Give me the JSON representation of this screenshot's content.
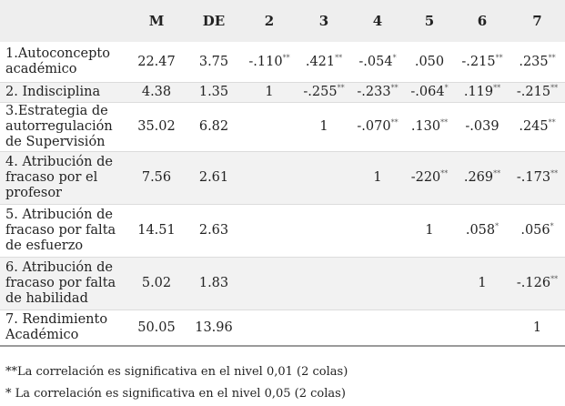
{
  "headers": [
    "",
    "M",
    "DE",
    "2",
    "3",
    "4",
    "5",
    "6",
    "7"
  ],
  "rows": [
    {
      "label": "1.Autoconcepto académico",
      "cells": [
        {
          "v": "22.47",
          "s": ""
        },
        {
          "v": "3.75",
          "s": ""
        },
        {
          "v": "-.110",
          "s": "**"
        },
        {
          "v": ".421",
          "s": "**"
        },
        {
          "v": "-.054",
          "s": "*"
        },
        {
          "v": ".050",
          "s": ""
        },
        {
          "v": "-.215",
          "s": "**"
        },
        {
          "v": ".235",
          "s": "**"
        }
      ]
    },
    {
      "label": "2. Indisciplina",
      "cells": [
        {
          "v": "4.38",
          "s": ""
        },
        {
          "v": "1.35",
          "s": ""
        },
        {
          "v": "1",
          "s": ""
        },
        {
          "v": "-.255",
          "s": "**"
        },
        {
          "v": "-.233",
          "s": "**"
        },
        {
          "v": "-.064",
          "s": "*"
        },
        {
          "v": ".119",
          "s": "**"
        },
        {
          "v": "-.215",
          "s": "**"
        }
      ]
    },
    {
      "label": "3.Estrategia de autorregulación de Supervisión",
      "cells": [
        {
          "v": "35.02",
          "s": ""
        },
        {
          "v": "6.82",
          "s": ""
        },
        {
          "v": "",
          "s": ""
        },
        {
          "v": "1",
          "s": ""
        },
        {
          "v": "-.070",
          "s": "**"
        },
        {
          "v": ".130",
          "s": "**"
        },
        {
          "v": "-.039",
          "s": ""
        },
        {
          "v": ".245",
          "s": "**"
        }
      ]
    },
    {
      "label": "4. Atribución de fracaso por el profesor",
      "cells": [
        {
          "v": "7.56",
          "s": ""
        },
        {
          "v": "2.61",
          "s": ""
        },
        {
          "v": "",
          "s": ""
        },
        {
          "v": "",
          "s": ""
        },
        {
          "v": "1",
          "s": ""
        },
        {
          "v": "-220",
          "s": "**"
        },
        {
          "v": ".269",
          "s": "**"
        },
        {
          "v": "-.173",
          "s": "**"
        }
      ]
    },
    {
      "label": "5. Atribución de fracaso por falta de esfuerzo",
      "cells": [
        {
          "v": "14.51",
          "s": ""
        },
        {
          "v": "2.63",
          "s": ""
        },
        {
          "v": "",
          "s": ""
        },
        {
          "v": "",
          "s": ""
        },
        {
          "v": "",
          "s": ""
        },
        {
          "v": "1",
          "s": ""
        },
        {
          "v": ".058",
          "s": "*"
        },
        {
          "v": ".056",
          "s": "*"
        }
      ]
    },
    {
      "label": "6. Atribución de fracaso por falta de habilidad",
      "cells": [
        {
          "v": "5.02",
          "s": ""
        },
        {
          "v": "1.83",
          "s": ""
        },
        {
          "v": "",
          "s": ""
        },
        {
          "v": "",
          "s": ""
        },
        {
          "v": "",
          "s": ""
        },
        {
          "v": "",
          "s": ""
        },
        {
          "v": "1",
          "s": ""
        },
        {
          "v": "-.126",
          "s": "**"
        }
      ]
    },
    {
      "label": "7. Rendimiento Académico",
      "cells": [
        {
          "v": "50.05",
          "s": ""
        },
        {
          "v": "13.96",
          "s": ""
        },
        {
          "v": "",
          "s": ""
        },
        {
          "v": "",
          "s": ""
        },
        {
          "v": "",
          "s": ""
        },
        {
          "v": "",
          "s": ""
        },
        {
          "v": "",
          "s": ""
        },
        {
          "v": "1",
          "s": ""
        }
      ]
    }
  ],
  "notes": [
    "**La correlación es significativa en el nivel 0,01 (2 colas)",
    "* La correlación es significativa en el nivel 0,05 (2 colas)"
  ]
}
